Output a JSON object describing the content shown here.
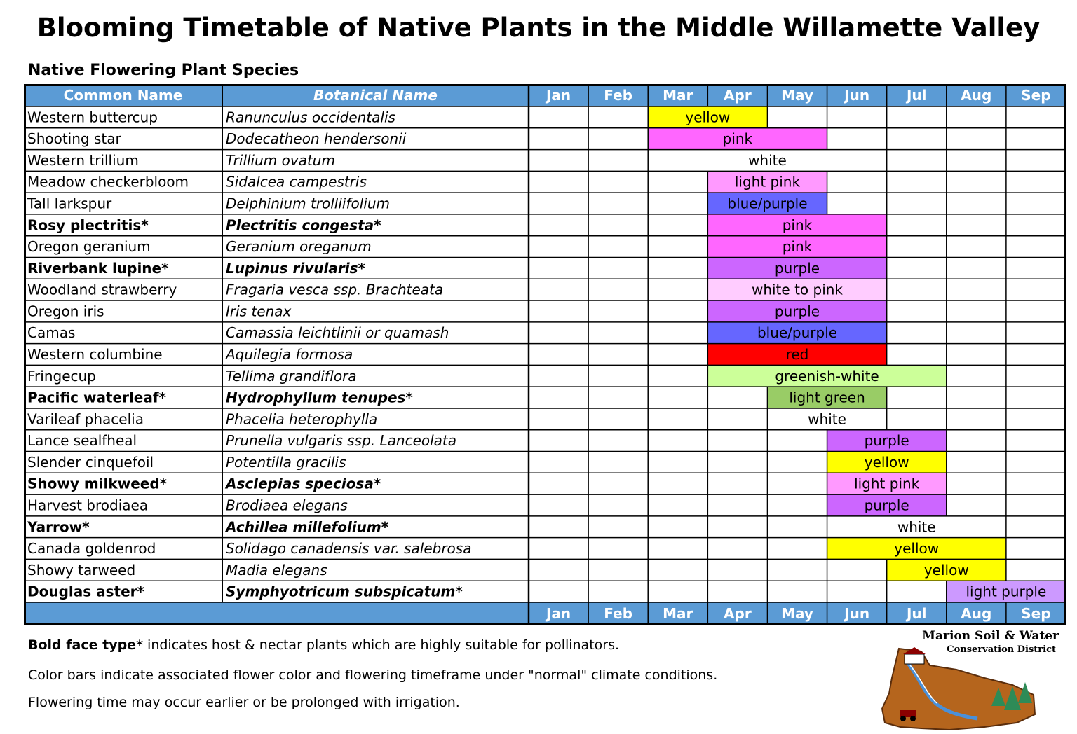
{
  "title": "Blooming Timetable of Native Plants in the Middle Willamette Valley",
  "subtitle": "Native Flowering Plant Species",
  "chart_data": {
    "type": "table",
    "columns": {
      "common": "Common Name",
      "botanical": "Botanical Name",
      "months": [
        "Jan",
        "Feb",
        "Mar",
        "Apr",
        "May",
        "Jun",
        "Jul",
        "Aug",
        "Sep"
      ]
    },
    "colors": {
      "header_bg": "#5b9bd5",
      "grid": "#000000",
      "yellow": "#ffff00",
      "pink": "#ff66ff",
      "light pink": "#ff99ff",
      "blue/purple": "#6666ff",
      "purple": "#cc66ff",
      "white to pink": "#ffccff",
      "red": "#ff0000",
      "greenish-white": "#ccff99",
      "light green": "#99cc66",
      "light purple": "#cc99ff",
      "white": "#ffffff"
    },
    "rows": [
      {
        "common": "Western buttercup",
        "botanical": "Ranunculus occidentalis",
        "bold": false,
        "start": "Mar",
        "end": "Apr",
        "color": "yellow"
      },
      {
        "common": "Shooting star",
        "botanical": "Dodecatheon hendersonii",
        "bold": false,
        "start": "Mar",
        "end": "May",
        "color": "pink"
      },
      {
        "common": "Western trillium",
        "botanical": "Trillium ovatum",
        "bold": false,
        "start": "Mar",
        "end": "Jun",
        "color": "white"
      },
      {
        "common": "Meadow checkerbloom",
        "botanical": "Sidalcea campestris",
        "bold": false,
        "start": "Apr",
        "end": "May",
        "color": "light pink"
      },
      {
        "common": "Tall larkspur",
        "botanical": "Delphinium trolliifolium",
        "bold": false,
        "start": "Apr",
        "end": "May",
        "color": "blue/purple"
      },
      {
        "common": "Rosy plectritis*",
        "botanical": "Plectritis congesta*",
        "bold": true,
        "start": "Apr",
        "end": "Jun",
        "color": "pink"
      },
      {
        "common": "Oregon geranium",
        "botanical": "Geranium oreganum",
        "bold": false,
        "start": "Apr",
        "end": "Jun",
        "color": "pink"
      },
      {
        "common": "Riverbank lupine*",
        "botanical": "Lupinus rivularis*",
        "bold": true,
        "start": "Apr",
        "end": "Jun",
        "color": "purple"
      },
      {
        "common": "Woodland strawberry",
        "botanical": "Fragaria vesca ssp. Brachteata",
        "bold": false,
        "start": "Apr",
        "end": "Jun",
        "color": "white to pink"
      },
      {
        "common": "Oregon iris",
        "botanical": "Iris tenax",
        "bold": false,
        "start": "Apr",
        "end": "Jun",
        "color": "purple"
      },
      {
        "common": "Camas",
        "botanical": "Camassia leichtlinii or quamash",
        "bold": false,
        "start": "Apr",
        "end": "Jun",
        "color": "blue/purple"
      },
      {
        "common": "Western columbine",
        "botanical": "Aquilegia formosa",
        "bold": false,
        "start": "Apr",
        "end": "Jun",
        "color": "red"
      },
      {
        "common": "Fringecup",
        "botanical": "Tellima grandiflora",
        "bold": false,
        "start": "Apr",
        "end": "Jul",
        "color": "greenish-white"
      },
      {
        "common": "Pacific waterleaf*",
        "botanical": "Hydrophyllum tenupes*",
        "bold": true,
        "start": "May",
        "end": "Jun",
        "color": "light green"
      },
      {
        "common": "Varileaf phacelia",
        "botanical": "Phacelia heterophylla",
        "bold": false,
        "start": "May",
        "end": "Jun",
        "color": "white"
      },
      {
        "common": "Lance sealfheal",
        "botanical": "Prunella vulgaris ssp. Lanceolata",
        "bold": false,
        "start": "Jun",
        "end": "Jul",
        "color": "purple"
      },
      {
        "common": "Slender cinquefoil",
        "botanical": "Potentilla gracilis",
        "bold": false,
        "start": "Jun",
        "end": "Jul",
        "color": "yellow"
      },
      {
        "common": "Showy milkweed*",
        "botanical": "Asclepias speciosa*",
        "bold": true,
        "start": "Jun",
        "end": "Jul",
        "color": "light pink"
      },
      {
        "common": "Harvest brodiaea",
        "botanical": "Brodiaea elegans",
        "bold": false,
        "start": "Jun",
        "end": "Jul",
        "color": "purple"
      },
      {
        "common": "Yarrow*",
        "botanical": "Achillea millefolium*",
        "bold": true,
        "start": "Jun",
        "end": "Aug",
        "color": "white"
      },
      {
        "common": "Canada goldenrod",
        "botanical": "Solidago canadensis var. salebrosa",
        "bold": false,
        "start": "Jun",
        "end": "Aug",
        "color": "yellow"
      },
      {
        "common": "Showy tarweed",
        "botanical": "Madia elegans",
        "bold": false,
        "start": "Jul",
        "end": "Aug",
        "color": "yellow"
      },
      {
        "common": "Douglas aster*",
        "botanical": "Symphyotricum subspicatum*",
        "bold": true,
        "start": "Aug",
        "end": "Sep",
        "color": "light purple"
      }
    ]
  },
  "notes": {
    "bold_lead": "Bold face type*",
    "line1_rest": " indicates host & nectar plants which are highly suitable for pollinators.",
    "line2": "Color bars indicate associated flower color and flowering timeframe under \"normal\" climate conditions.",
    "line3": "Flowering time may occur earlier or be prolonged with irrigation."
  },
  "logo": {
    "line1": "Marion Soil & Water",
    "line2": "Conservation District"
  }
}
